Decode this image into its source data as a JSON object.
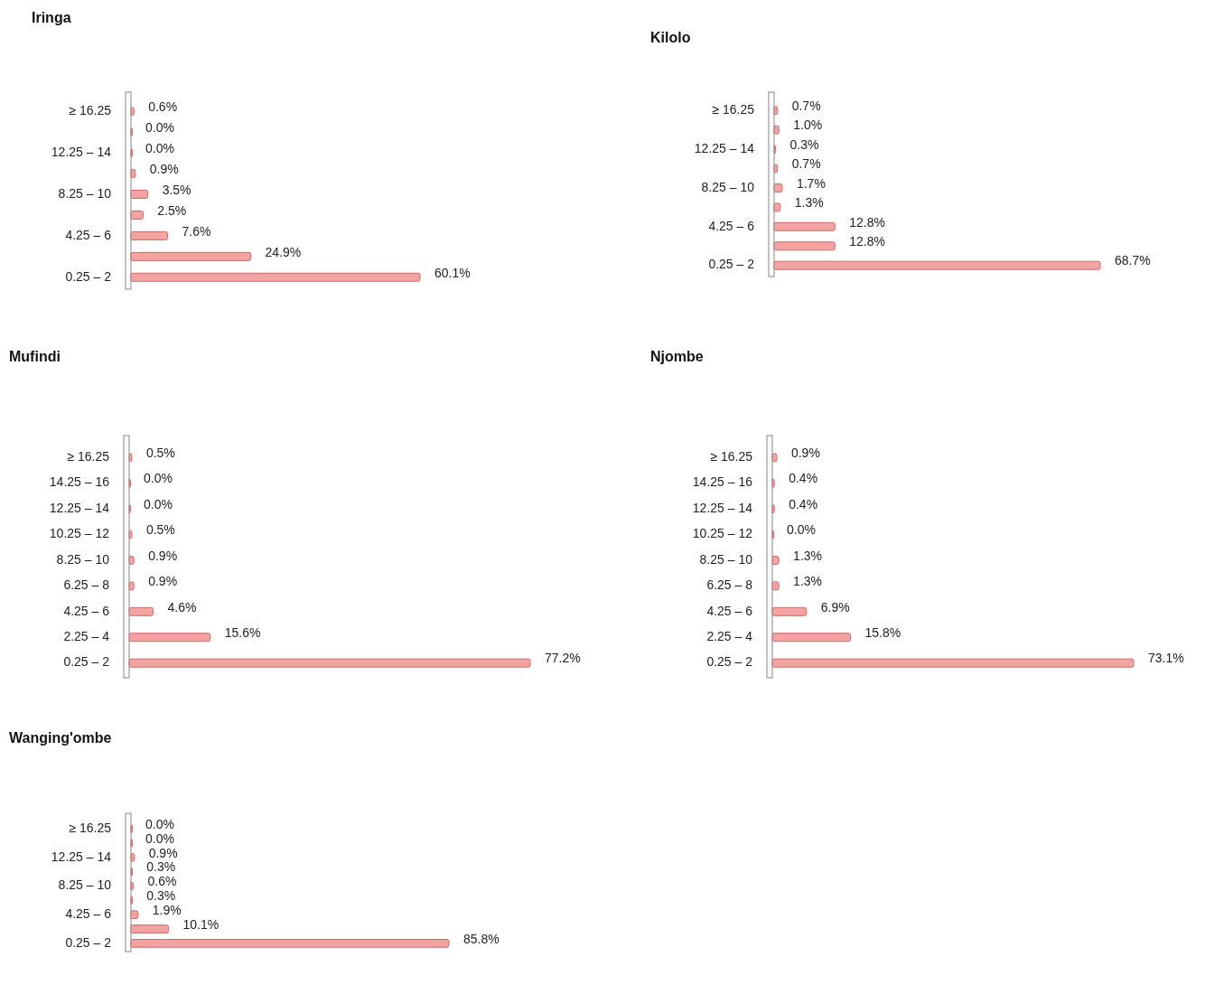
{
  "chart_data": [
    {
      "type": "bar",
      "orientation": "horizontal",
      "title": "Iringa",
      "categories": [
        "≥ 16.25",
        null,
        "12.25 – 14",
        null,
        "8.25 – 10",
        null,
        "4.25 – 6",
        null,
        "0.25 – 2"
      ],
      "values": [
        0.6,
        0.0,
        0.0,
        0.9,
        3.5,
        2.5,
        7.6,
        24.9,
        60.1
      ],
      "value_labels": [
        "0.6%",
        "0.0%",
        "0.0%",
        "0.9%",
        "3.5%",
        "2.5%",
        "7.6%",
        "24.9%",
        "60.1%"
      ],
      "color": "#f4a3a3"
    },
    {
      "type": "bar",
      "orientation": "horizontal",
      "title": "Kilolo",
      "categories": [
        "≥ 16.25",
        null,
        "12.25 – 14",
        null,
        "8.25 – 10",
        null,
        "4.25 – 6",
        null,
        "0.25 – 2"
      ],
      "values": [
        0.7,
        1.0,
        0.3,
        0.7,
        1.7,
        1.3,
        12.8,
        12.8,
        68.7
      ],
      "value_labels": [
        "0.7%",
        "1.0%",
        "0.3%",
        "0.7%",
        "1.7%",
        "1.3%",
        "12.8%",
        "12.8%",
        "68.7%"
      ],
      "color": "#f4a3a3"
    },
    {
      "type": "bar",
      "orientation": "horizontal",
      "title": "Mufindi",
      "categories": [
        "≥ 16.25",
        "14.25 – 16",
        "12.25 – 14",
        "10.25 – 12",
        "8.25 – 10",
        "6.25 – 8",
        "4.25 – 6",
        "2.25 – 4",
        "0.25 – 2"
      ],
      "values": [
        0.5,
        0.0,
        0.0,
        0.5,
        0.9,
        0.9,
        4.6,
        15.6,
        77.2
      ],
      "value_labels": [
        "0.5%",
        "0.0%",
        "0.0%",
        "0.5%",
        "0.9%",
        "0.9%",
        "4.6%",
        "15.6%",
        "77.2%"
      ],
      "color": "#f4a3a3"
    },
    {
      "type": "bar",
      "orientation": "horizontal",
      "title": "Njombe",
      "categories": [
        "≥ 16.25",
        "14.25 – 16",
        "12.25 – 14",
        "10.25 – 12",
        "8.25 – 10",
        "6.25 – 8",
        "4.25 – 6",
        "2.25 – 4",
        "0.25 – 2"
      ],
      "values": [
        0.9,
        0.4,
        0.4,
        0.0,
        1.3,
        1.3,
        6.9,
        15.8,
        73.1
      ],
      "value_labels": [
        "0.9%",
        "0.4%",
        "0.4%",
        "0.0%",
        "1.3%",
        "1.3%",
        "6.9%",
        "15.8%",
        "73.1%"
      ],
      "color": "#f4a3a3"
    },
    {
      "type": "bar",
      "orientation": "horizontal",
      "title": "Wanging'ombe",
      "categories": [
        "≥ 16.25",
        null,
        "12.25 – 14",
        null,
        "8.25 – 10",
        null,
        "4.25 – 6",
        null,
        "0.25 – 2"
      ],
      "values": [
        0.0,
        0.0,
        0.9,
        0.3,
        0.6,
        0.3,
        1.9,
        10.1,
        85.8
      ],
      "value_labels": [
        "0.0%",
        "0.0%",
        "0.9%",
        "0.3%",
        "0.6%",
        "0.3%",
        "1.9%",
        "10.1%",
        "85.8%"
      ],
      "color": "#f4a3a3"
    }
  ]
}
